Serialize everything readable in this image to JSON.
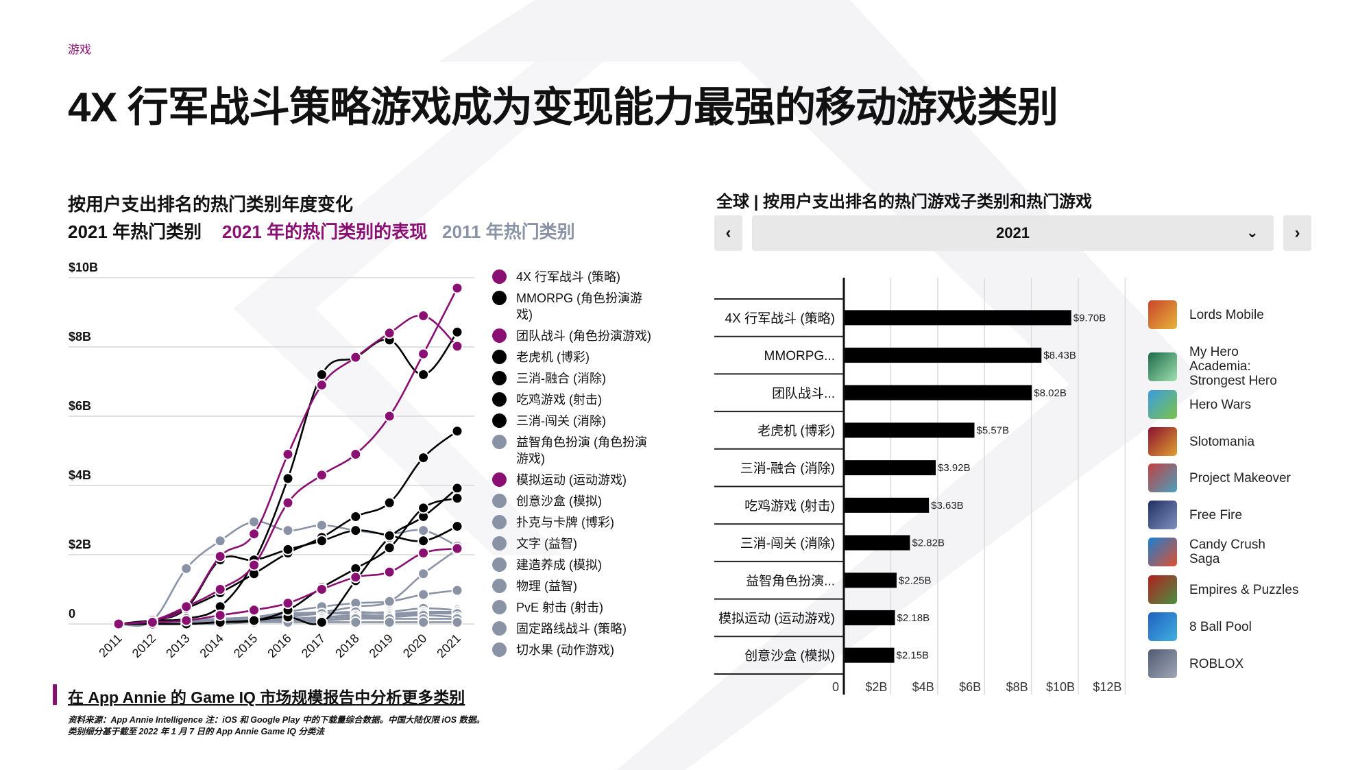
{
  "section_label": "游戏",
  "title": "4X 行军战斗策略游戏成为变现能力最强的移动游戏类别",
  "left_panel": {
    "subtitle": "按用户支出排名的热门类别年度变化",
    "view_buttons": [
      "2021 年热门类别",
      "2021 年的热门类别的表现",
      "2011 年热门类别"
    ]
  },
  "right_panel": {
    "subtitle": "全球 | 按用户支出排名的热门游戏子类别和热门游戏",
    "prev_label": "‹",
    "next_label": "›",
    "year_selected": "2021",
    "dropdown_icon": "chevron-down-icon",
    "games": [
      "Lords Mobile",
      "My Hero Academia: Strongest Hero",
      "Hero Wars",
      "Slotomania",
      "Project Makeover",
      "Free Fire",
      "Candy Crush Saga",
      "Empires & Puzzles",
      "8 Ball Pool",
      "ROBLOX"
    ]
  },
  "footer": {
    "link": "在 App Annie 的 Game IQ 市场规模报告中分析更多类别",
    "source": "资料来源：App Annie Intelligence 注：iOS 和 Google Play 中的下载量综合数据。中国大陆仅限 iOS 数据。类别细分基于截至 2022 年 1 月 7 日的 App Annie Game IQ 分类法"
  },
  "colors": {
    "accent": "#8a0f73",
    "black": "#000000",
    "gray": "#8a93a6"
  },
  "chart_data": [
    {
      "type": "line",
      "x": [
        2011,
        2012,
        2013,
        2014,
        2015,
        2016,
        2017,
        2018,
        2019,
        2020,
        2021
      ],
      "xtick_labels": [
        "2011",
        "2012",
        "2013",
        "2014",
        "2015",
        "2016",
        "2017",
        "2018",
        "2019",
        "2020",
        "2021"
      ],
      "ytick_labels": [
        "0",
        "$2B",
        "$4B",
        "$6B",
        "$8B",
        "$10B"
      ],
      "yticks": [
        0,
        2,
        4,
        6,
        8,
        10
      ],
      "ylim": [
        0,
        10
      ],
      "grid": true,
      "legend_placement": "right",
      "series": [
        {
          "name": "4X 行军战斗 (策略)",
          "color": "#8a0f73",
          "values": [
            0,
            0.1,
            0.5,
            1.0,
            1.7,
            3.5,
            4.3,
            4.9,
            6.0,
            7.8,
            9.7
          ]
        },
        {
          "name": "MMORPG (角色扮演游戏)",
          "color": "#000000",
          "values": [
            0,
            0.1,
            0.15,
            0.5,
            1.8,
            4.2,
            7.2,
            7.7,
            8.2,
            7.2,
            8.43
          ]
        },
        {
          "name": "团队战斗 (角色扮演游戏)",
          "color": "#8a0f73",
          "values": [
            0,
            0.1,
            0.5,
            1.95,
            2.6,
            4.9,
            6.9,
            7.7,
            8.4,
            8.9,
            8.02
          ]
        },
        {
          "name": "老虎机 (博彩)",
          "color": "#000000",
          "values": [
            0,
            0.1,
            0.45,
            0.9,
            1.45,
            2.05,
            2.5,
            3.1,
            3.5,
            4.8,
            5.57
          ]
        },
        {
          "name": "三消-融合 (消除)",
          "color": "#000000",
          "values": [
            0,
            0,
            0,
            0.05,
            0.1,
            0.2,
            0.05,
            1.25,
            2.5,
            3.1,
            3.92
          ]
        },
        {
          "name": "吃鸡游戏 (射击)",
          "color": "#000000",
          "values": [
            0,
            0,
            0,
            0.05,
            0.1,
            0.4,
            1.05,
            1.6,
            2.2,
            3.35,
            3.63
          ]
        },
        {
          "name": "三消-闯关 (消除)",
          "color": "#000000",
          "values": [
            0,
            0.1,
            0.45,
            1.85,
            1.85,
            2.15,
            2.4,
            2.7,
            2.55,
            2.4,
            2.82
          ]
        },
        {
          "name": "益智角色扮演 (角色扮演游戏)",
          "color": "#8a93a6",
          "values": [
            0,
            0.1,
            1.6,
            2.4,
            2.95,
            2.7,
            2.85,
            2.7,
            2.6,
            2.7,
            2.25
          ]
        },
        {
          "name": "模拟运动 (运动游戏)",
          "color": "#8a0f73",
          "values": [
            0,
            0.05,
            0.1,
            0.25,
            0.4,
            0.6,
            1.0,
            1.35,
            1.5,
            2.05,
            2.18
          ]
        },
        {
          "name": "创意沙盒 (模拟)",
          "color": "#8a93a6",
          "values": [
            0,
            0.05,
            0.1,
            0.15,
            0.2,
            0.3,
            0.35,
            0.5,
            0.65,
            1.45,
            2.15
          ]
        },
        {
          "name": "扑克与卡牌 (博彩)",
          "color": "#8a93a6",
          "values": [
            0,
            0.05,
            0.1,
            0.15,
            0.2,
            0.35,
            0.5,
            0.6,
            0.65,
            0.85,
            0.97
          ]
        },
        {
          "name": "文字 (益智)",
          "color": "#8a93a6",
          "values": [
            0,
            0,
            0.05,
            0.1,
            0.15,
            0.25,
            0.3,
            0.3,
            0.35,
            0.45,
            0.4
          ]
        },
        {
          "name": "建造养成 (模拟)",
          "color": "#8a93a6",
          "values": [
            0,
            0,
            0.05,
            0.1,
            0.15,
            0.2,
            0.3,
            0.35,
            0.3,
            0.35,
            0.35
          ]
        },
        {
          "name": "物理 (益智)",
          "color": "#8a93a6",
          "values": [
            0,
            0,
            0.05,
            0.1,
            0.1,
            0.15,
            0.2,
            0.25,
            0.25,
            0.3,
            0.3
          ]
        },
        {
          "name": "PvE 射击 (射击)",
          "color": "#8a93a6",
          "values": [
            0,
            0,
            0,
            0.05,
            0.1,
            0.1,
            0.15,
            0.2,
            0.2,
            0.25,
            0.2
          ]
        },
        {
          "name": "固定路线战斗 (策略)",
          "color": "#8a93a6",
          "values": [
            0,
            0,
            0,
            0.05,
            0.05,
            0.1,
            0.1,
            0.15,
            0.15,
            0.15,
            0.15
          ]
        },
        {
          "name": "切水果 (动作游戏)",
          "color": "#8a93a6",
          "values": [
            0,
            0,
            0,
            0,
            0.05,
            0.05,
            0.05,
            0.05,
            0.05,
            0.05,
            0.05
          ]
        }
      ]
    },
    {
      "type": "bar",
      "orientation": "horizontal",
      "categories": [
        "4X 行军战斗 (策略)",
        "MMORPG...",
        "团队战斗...",
        "老虎机 (博彩)",
        "三消-融合 (消除)",
        "吃鸡游戏 (射击)",
        "三消-闯关 (消除)",
        "益智角色扮演...",
        "模拟运动 (运动游戏)",
        "创意沙盒 (模拟)"
      ],
      "values": [
        9.7,
        8.43,
        8.02,
        5.57,
        3.92,
        3.63,
        2.82,
        2.25,
        2.18,
        2.15
      ],
      "data_labels": [
        "$9.70B",
        "$8.43B",
        "$8.02B",
        "$5.57B",
        "$3.92B",
        "$3.63B",
        "$2.82B",
        "$2.25B",
        "$2.18B",
        "$2.15B"
      ],
      "xticks": [
        0,
        2,
        4,
        6,
        8,
        10,
        12
      ],
      "xtick_labels": [
        "0",
        "$2B",
        "$4B",
        "$6B",
        "$8B",
        "$10B",
        "$12B"
      ],
      "xlim": [
        0,
        12
      ],
      "grid": true,
      "color": "#000000"
    }
  ]
}
